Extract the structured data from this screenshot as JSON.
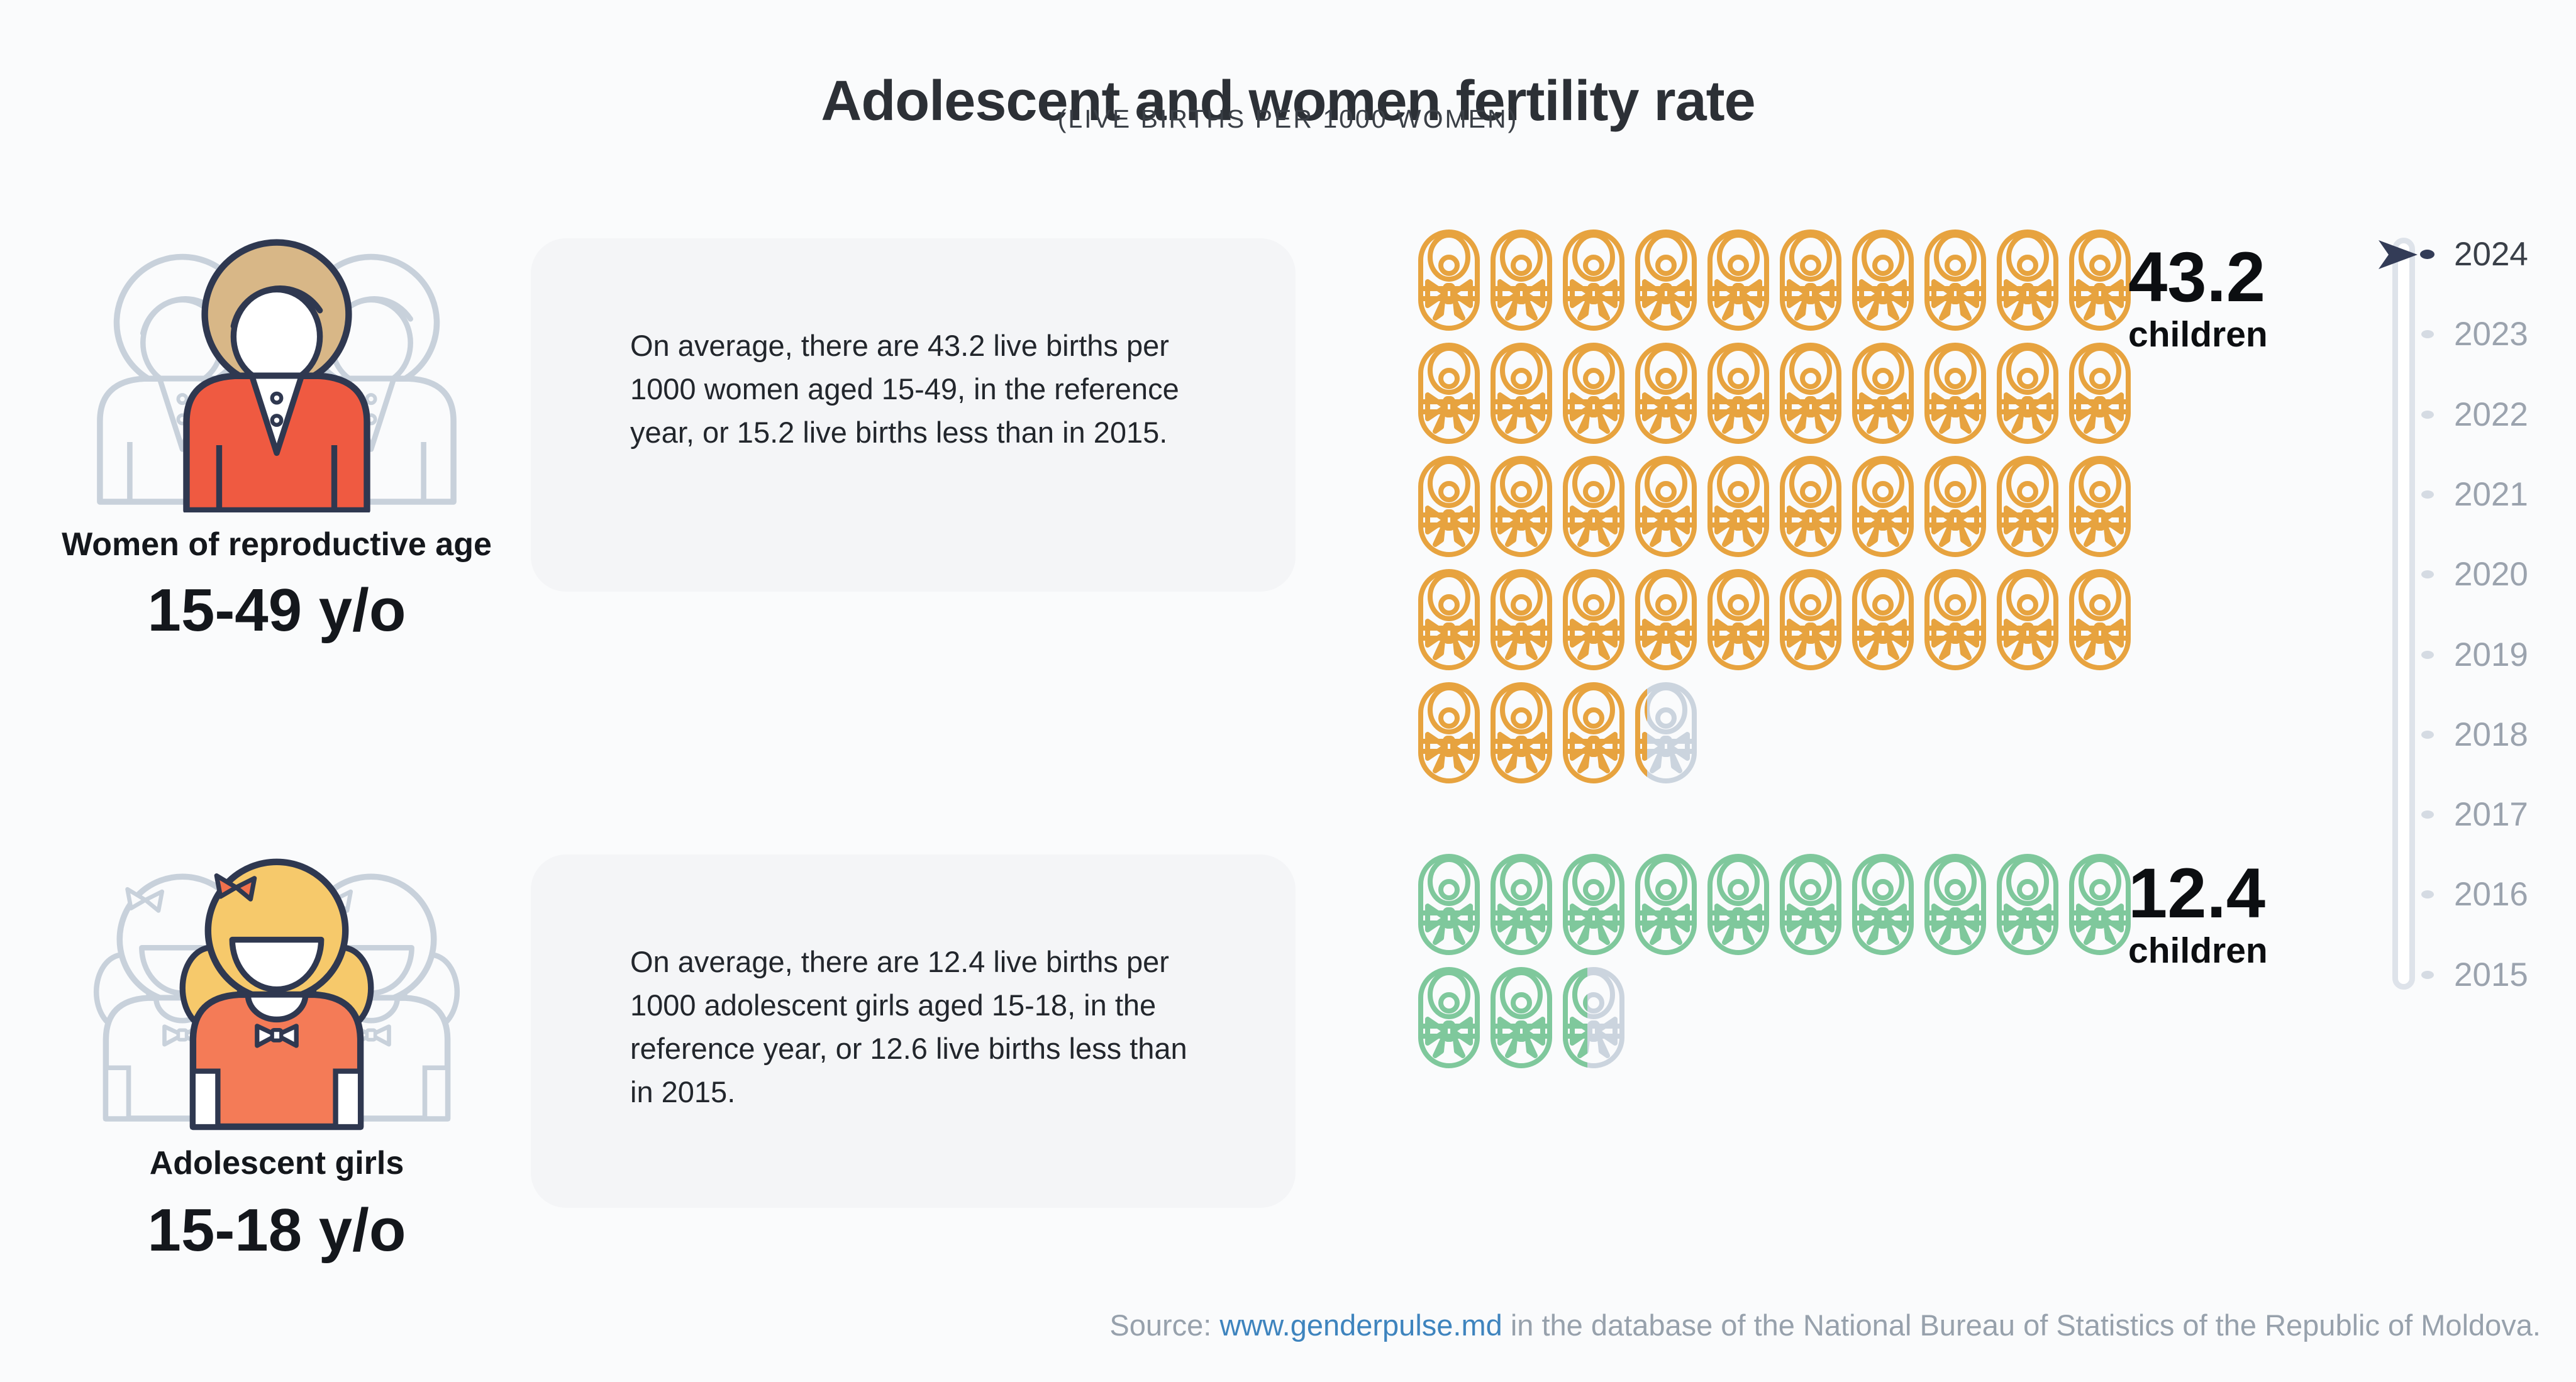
{
  "title": "Adolescent and women fertility rate",
  "subtitle": "(LIVE BIRTHS PER 1000 WOMEN)",
  "groups": [
    {
      "id": "women",
      "label": "Women of reproductive age",
      "age_range": "15-49 y/o",
      "description": "On average, there are 43.2 live births per 1000 women aged 15-49, in the reference year, or 15.2 live births less than in 2015.",
      "value": "43.2",
      "value_num": 43.2,
      "value_unit": "children",
      "icons_per_row": 10,
      "icon_color": "#E7A33F"
    },
    {
      "id": "girls",
      "label": "Adolescent girls",
      "age_range": "15-18 y/o",
      "description": "On average, there are 12.4 live births per 1000 adolescent girls aged 15-18, in the reference year, or 12.6 live births less than in 2015.",
      "value": "12.4",
      "value_num": 12.4,
      "value_unit": "children",
      "icons_per_row": 10,
      "icon_color": "#7FC89C"
    }
  ],
  "timeline": {
    "selected_year": "2024",
    "years": [
      "2024",
      "2023",
      "2022",
      "2021",
      "2020",
      "2019",
      "2018",
      "2017",
      "2016",
      "2015"
    ]
  },
  "source": {
    "prefix": "Source: ",
    "link": "www.genderpulse.md",
    "suffix": " in the database of the National Bureau of Statistics of the Republic of Moldova."
  },
  "colors": {
    "page_bg": "#FAFBFC",
    "panel_bg": "#F4F5F7",
    "accent_orange": "#E7A33F",
    "accent_green": "#7FC89C",
    "icon_empty": "#CBD4DE",
    "outline_navy": "#2F3850",
    "jacket_red": "#EF5A41",
    "shirt_orange": "#F47B57",
    "hair_tan": "#D8B787",
    "hair_blonde": "#F6C96B",
    "link_blue": "#3E84BE",
    "timeline_selected": "#333C57",
    "timeline_muted": "#9BA3AE"
  },
  "chart_data": {
    "type": "bar",
    "variant": "pictogram",
    "title": "Adolescent and women fertility rate",
    "subtitle": "(LIVE BIRTHS PER 1000 WOMEN)",
    "unit": "live births per 1000 women",
    "reference_year": 2024,
    "categories": [
      "Women of reproductive age (15-49 y/o)",
      "Adolescent girls (15-18 y/o)"
    ],
    "values": [
      43.2,
      12.4
    ],
    "change_vs_2015": [
      -15.2,
      -12.6
    ],
    "icon_value": 1,
    "icons_per_row": 10,
    "timeline_years": [
      2024,
      2023,
      2022,
      2021,
      2020,
      2019,
      2018,
      2017,
      2016,
      2015
    ],
    "legend_position": "none",
    "source": "Source: www.genderpulse.md in the database of the National Bureau of Statistics of the Republic of Moldova."
  }
}
